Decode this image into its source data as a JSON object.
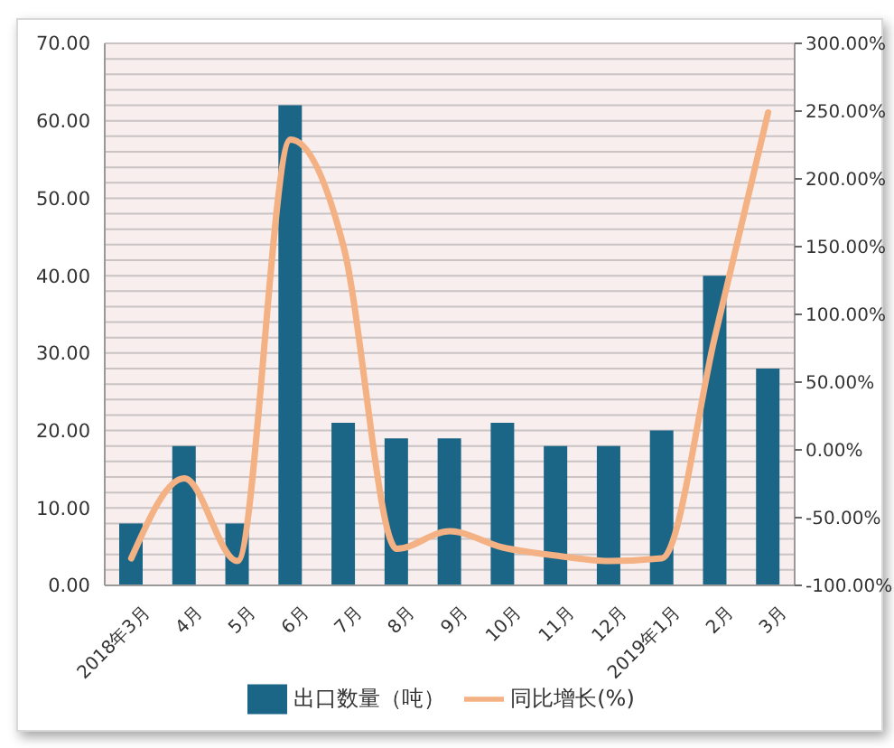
{
  "chart_data": {
    "type": "bar",
    "categories": [
      "2018年3月",
      "4月",
      "5月",
      "6月",
      "7月",
      "8月",
      "9月",
      "10月",
      "11月",
      "12月",
      "2019年1月",
      "2月",
      "3月"
    ],
    "series": [
      {
        "name": "出口数量（吨）",
        "color": "#1b6587",
        "values": [
          8,
          18,
          8,
          62,
          21,
          19,
          19,
          21,
          18,
          18,
          20,
          40,
          28
        ]
      },
      {
        "name": "同比增长(%)",
        "type": "line",
        "axis": "y2",
        "color": "#f4b183",
        "values": [
          -80,
          -21,
          -82,
          229,
          150,
          -73,
          -60,
          -72,
          -78,
          -82,
          -80,
          84,
          249
        ]
      }
    ],
    "ylim": [
      0,
      70
    ],
    "yticks": [
      {
        "value": 0,
        "label": "0.00"
      },
      {
        "value": 2,
        "label": null
      },
      {
        "value": 4,
        "label": null
      },
      {
        "value": 6,
        "label": null
      },
      {
        "value": 8,
        "label": null
      },
      {
        "value": 10,
        "label": "10.00"
      },
      {
        "value": 12,
        "label": null
      },
      {
        "value": 14,
        "label": null
      },
      {
        "value": 16,
        "label": null
      },
      {
        "value": 18,
        "label": null
      },
      {
        "value": 20,
        "label": "20.00"
      },
      {
        "value": 22,
        "label": null
      },
      {
        "value": 24,
        "label": null
      },
      {
        "value": 26,
        "label": null
      },
      {
        "value": 28,
        "label": null
      },
      {
        "value": 30,
        "label": "30.00"
      },
      {
        "value": 32,
        "label": null
      },
      {
        "value": 34,
        "label": null
      },
      {
        "value": 36,
        "label": null
      },
      {
        "value": 38,
        "label": null
      },
      {
        "value": 40,
        "label": "40.00"
      },
      {
        "value": 42,
        "label": null
      },
      {
        "value": 44,
        "label": null
      },
      {
        "value": 46,
        "label": null
      },
      {
        "value": 48,
        "label": null
      },
      {
        "value": 50,
        "label": "50.00"
      },
      {
        "value": 52,
        "label": null
      },
      {
        "value": 54,
        "label": null
      },
      {
        "value": 56,
        "label": null
      },
      {
        "value": 58,
        "label": null
      },
      {
        "value": 60,
        "label": "60.00"
      },
      {
        "value": 62,
        "label": null
      },
      {
        "value": 64,
        "label": null
      },
      {
        "value": 66,
        "label": null
      },
      {
        "value": 68,
        "label": null
      },
      {
        "value": 70,
        "label": "70.00"
      }
    ],
    "y2lim": [
      -100,
      300
    ],
    "y2ticks": [
      {
        "value": -100,
        "label": "-100.00%"
      },
      {
        "value": -50,
        "label": "-50.00%"
      },
      {
        "value": 0,
        "label": "0.00%"
      },
      {
        "value": 50,
        "label": "50.00%"
      },
      {
        "value": 100,
        "label": "100.00%"
      },
      {
        "value": 150,
        "label": "150.00%"
      },
      {
        "value": 200,
        "label": "200.00%"
      },
      {
        "value": 250,
        "label": "250.00%"
      },
      {
        "value": 300,
        "label": "300.00%"
      }
    ],
    "grid": "y",
    "legend": "bottom"
  }
}
